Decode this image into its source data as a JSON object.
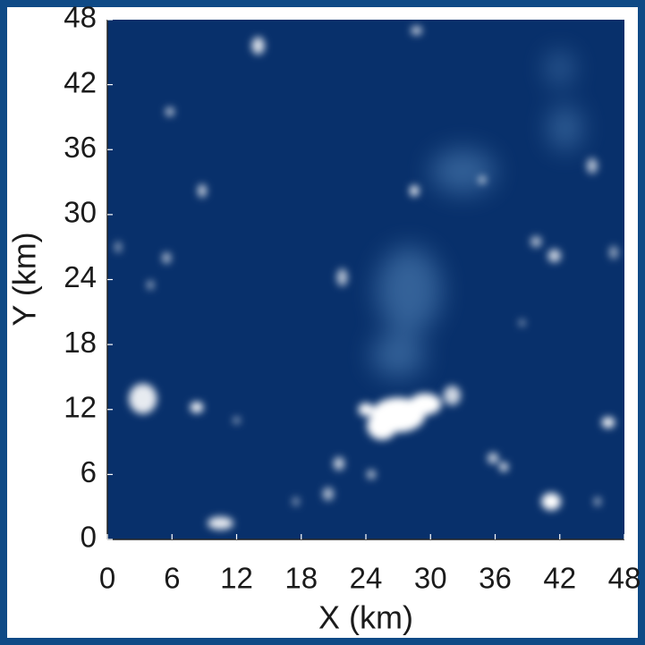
{
  "chart_data": {
    "type": "heatmap",
    "x_label": "X (km)",
    "y_label": "Y (km)",
    "xlim": [
      0,
      48
    ],
    "ylim": [
      0,
      48
    ],
    "xticks": [
      0,
      6,
      12,
      18,
      24,
      30,
      36,
      42,
      48
    ],
    "yticks": [
      0,
      6,
      12,
      18,
      24,
      30,
      36,
      42,
      48
    ],
    "color": "#08306b"
  }
}
